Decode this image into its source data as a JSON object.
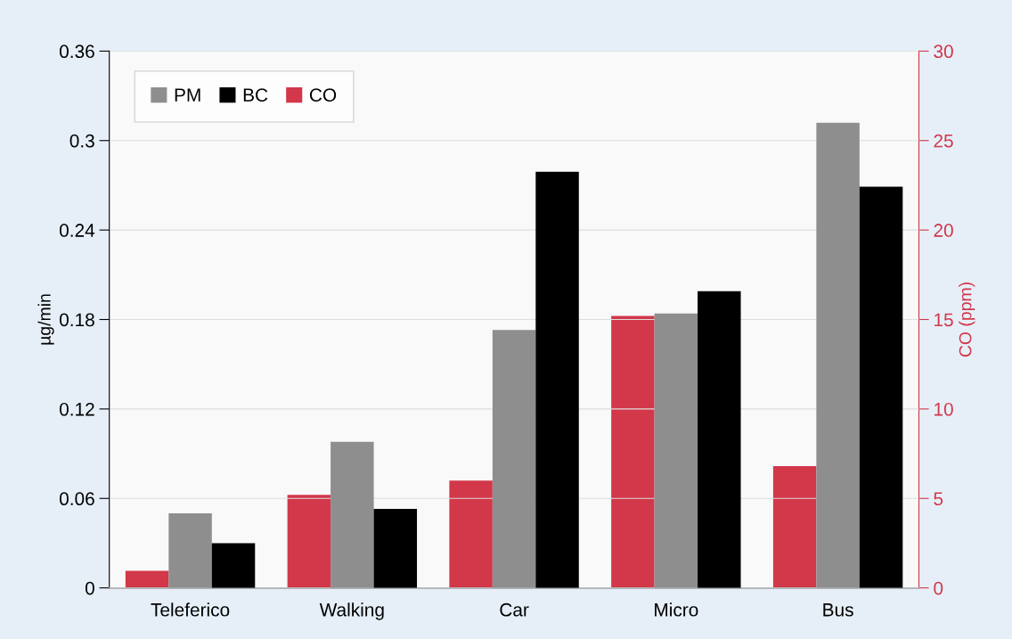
{
  "chart_data": {
    "type": "bar",
    "ylabel": "µg/min",
    "y2label": "CO (ppm)",
    "categories": [
      "Teleferico",
      "Walking",
      "Car",
      "Micro",
      "Bus"
    ],
    "series": [
      {
        "name": "PM",
        "color": "#8e8e8e",
        "values": [
          0.05,
          0.098,
          0.173,
          0.184,
          0.312
        ]
      },
      {
        "name": "BC",
        "color": "#000000",
        "values": [
          0.03,
          0.053,
          0.279,
          0.199,
          0.269
        ]
      },
      {
        "name": "CO",
        "color": "#d2374a",
        "axis": "y2",
        "values": [
          0.95,
          5.2,
          6.0,
          15.2,
          6.8
        ]
      }
    ],
    "ylim": [
      0,
      0.36
    ],
    "yticks": [
      0,
      0.06,
      0.12,
      0.18,
      0.24,
      0.3,
      0.36
    ],
    "y2lim": [
      0,
      30
    ],
    "y2ticks": [
      0,
      5,
      10,
      15,
      20,
      25,
      30
    ],
    "grid": "y",
    "legend": "top left"
  }
}
